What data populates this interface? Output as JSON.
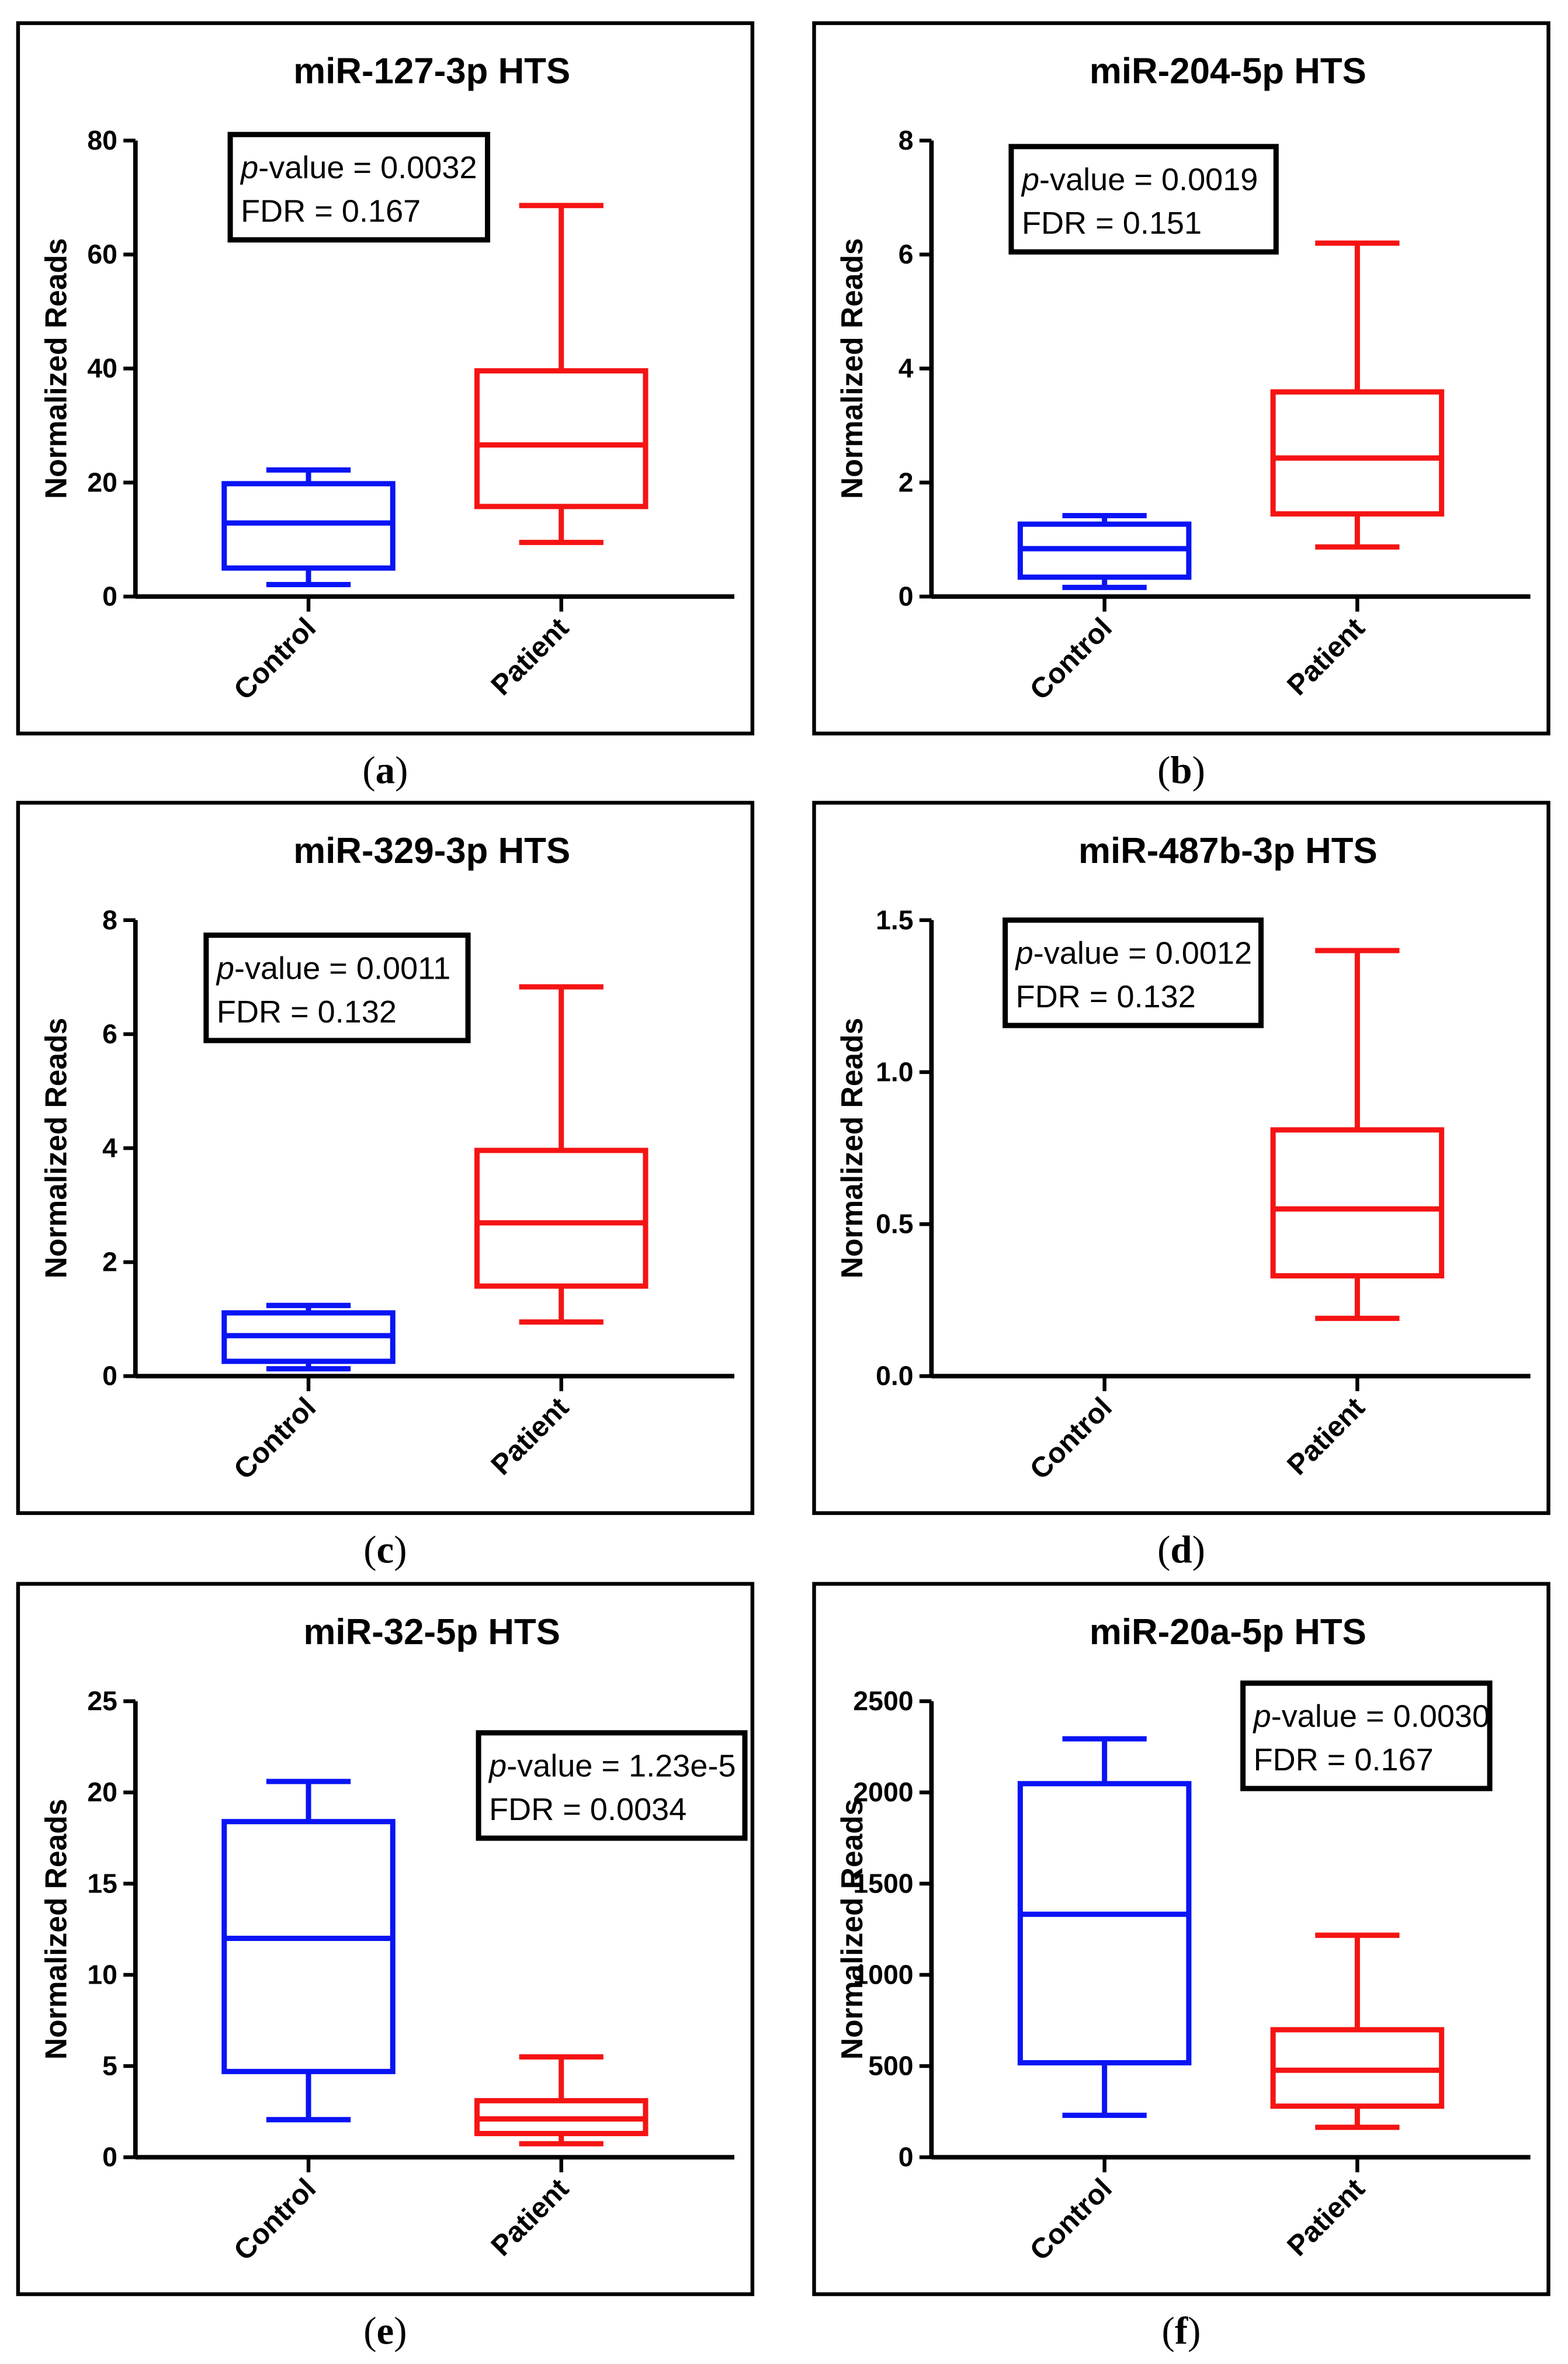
{
  "colors": {
    "control": "#0a14f5",
    "patient": "#f51414",
    "frame": "#000000"
  },
  "chart_data": [
    {
      "type": "box",
      "panel_label": "a",
      "title": "miR-127-3p HTS",
      "ylabel": "Normalized Reads",
      "ylim": [
        0,
        80
      ],
      "yticks": [
        "0",
        "20",
        "40",
        "60",
        "80"
      ],
      "ytick_values": [
        0,
        20,
        40,
        60,
        80
      ],
      "categories": [
        "Control",
        "Patient"
      ],
      "boxes": [
        {
          "min": 2.1,
          "q1": 5,
          "median": 12.9,
          "q3": 19.8,
          "max": 22.2
        },
        {
          "min": 9.5,
          "q1": 15.8,
          "median": 26.6,
          "q3": 39.6,
          "max": 68.6
        }
      ],
      "stats": {
        "p_prefix": "p",
        "p_text": "-value = 0.0032",
        "fdr_text": "FDR = 0.167"
      }
    },
    {
      "type": "box",
      "panel_label": "b",
      "title": "miR-204-5p HTS",
      "ylabel": "Normalized Reads",
      "ylim": [
        0,
        8
      ],
      "yticks": [
        "0",
        "2",
        "4",
        "6",
        "8"
      ],
      "ytick_values": [
        0,
        2,
        4,
        6,
        8
      ],
      "categories": [
        "Control",
        "Patient"
      ],
      "boxes": [
        {
          "min": 0.16,
          "q1": 0.34,
          "median": 0.84,
          "q3": 1.27,
          "max": 1.42
        },
        {
          "min": 0.87,
          "q1": 1.45,
          "median": 2.43,
          "q3": 3.59,
          "max": 6.2
        }
      ],
      "stats": {
        "p_prefix": "p",
        "p_text": "-value = 0.0019",
        "fdr_text": "FDR = 0.151"
      }
    },
    {
      "type": "box",
      "panel_label": "c",
      "title": "miR-329-3p HTS",
      "ylabel": "Normalized Reads",
      "ylim": [
        0,
        8
      ],
      "yticks": [
        "0",
        "2",
        "4",
        "6",
        "8"
      ],
      "ytick_values": [
        0,
        2,
        4,
        6,
        8
      ],
      "categories": [
        "Control",
        "Patient"
      ],
      "boxes": [
        {
          "min": 0.13,
          "q1": 0.26,
          "median": 0.71,
          "q3": 1.11,
          "max": 1.24
        },
        {
          "min": 0.95,
          "q1": 1.58,
          "median": 2.69,
          "q3": 3.96,
          "max": 6.83
        }
      ],
      "stats": {
        "p_prefix": "p",
        "p_text": "-value = 0.0011",
        "fdr_text": "FDR = 0.132"
      }
    },
    {
      "type": "box",
      "panel_label": "d",
      "title": "miR-487b-3p HTS",
      "ylabel": "Normalized Reads",
      "ylim": [
        0,
        1.5
      ],
      "yticks": [
        "0.0",
        "0.5",
        "1.0",
        "1.5"
      ],
      "ytick_values": [
        0,
        0.5,
        1.0,
        1.5
      ],
      "categories": [
        "Control",
        "Patient"
      ],
      "boxes": [
        null,
        {
          "min": 0.19,
          "q1": 0.33,
          "median": 0.55,
          "q3": 0.81,
          "max": 1.4
        }
      ],
      "stats": {
        "p_prefix": "p",
        "p_text": "-value = 0.0012",
        "fdr_text": "FDR = 0.132"
      }
    },
    {
      "type": "box",
      "panel_label": "e",
      "title": "miR-32-5p HTS",
      "ylabel": "Normalized Reads",
      "ylim": [
        0,
        25
      ],
      "yticks": [
        "0",
        "5",
        "10",
        "15",
        "20",
        "25"
      ],
      "ytick_values": [
        0,
        5,
        10,
        15,
        20,
        25
      ],
      "categories": [
        "Control",
        "Patient"
      ],
      "boxes": [
        {
          "min": 2.06,
          "q1": 4.7,
          "median": 12.0,
          "q3": 18.4,
          "max": 20.6
        },
        {
          "min": 0.74,
          "q1": 1.3,
          "median": 2.1,
          "q3": 3.1,
          "max": 5.5
        }
      ],
      "stats": {
        "p_prefix": "p",
        "p_text": "-value = 1.23e-5",
        "fdr_text": "FDR = 0.0034"
      }
    },
    {
      "type": "box",
      "panel_label": "f",
      "title": "miR-20a-5p HTS",
      "ylabel": "Normalized Reads",
      "ylim": [
        0,
        2500
      ],
      "yticks": [
        "0",
        "500",
        "1000",
        "1500",
        "2000",
        "2500"
      ],
      "ytick_values": [
        0,
        500,
        1000,
        1500,
        2000,
        2500
      ],
      "categories": [
        "Control",
        "Patient"
      ],
      "boxes": [
        {
          "min": 230,
          "q1": 518,
          "median": 1332,
          "q3": 2048,
          "max": 2294
        },
        {
          "min": 164,
          "q1": 280,
          "median": 477,
          "q3": 699,
          "max": 1217
        }
      ],
      "stats": {
        "p_prefix": "p",
        "p_text": "-value = 0.0030",
        "fdr_text": "FDR = 0.167"
      }
    }
  ]
}
